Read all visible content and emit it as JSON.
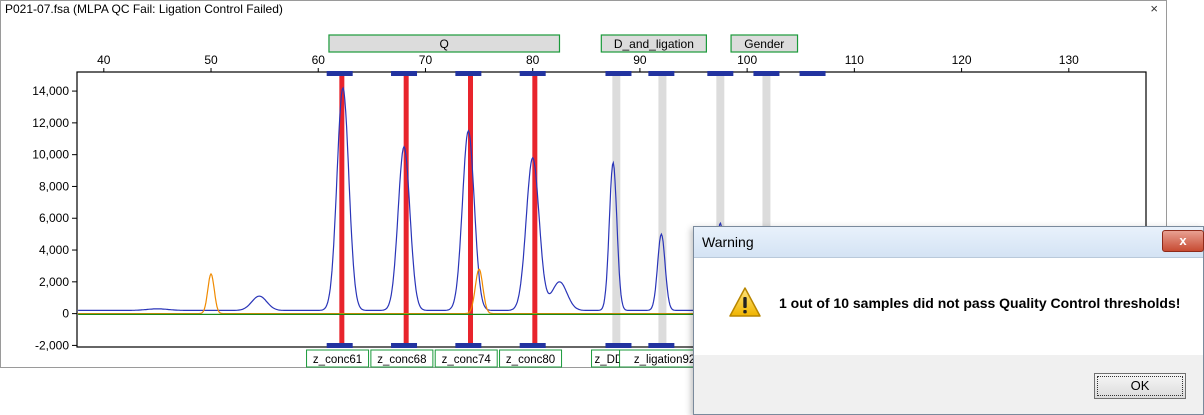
{
  "window": {
    "title": "P021-07.fsa (MLPA QC Fail: Ligation Control Failed)",
    "close_glyph": "×"
  },
  "chart_data": {
    "type": "line",
    "x_ticks": [
      40,
      50,
      60,
      70,
      80,
      90,
      100,
      110,
      120,
      130
    ],
    "y_ticks": [
      {
        "value": 14000,
        "label": "14,000"
      },
      {
        "value": 12000,
        "label": "12,000"
      },
      {
        "value": 10000,
        "label": "10,000"
      },
      {
        "value": 8000,
        "label": "8,000"
      },
      {
        "value": 6000,
        "label": "6,000"
      },
      {
        "value": 4000,
        "label": "4,000"
      },
      {
        "value": 2000,
        "label": "2,000"
      },
      {
        "value": 0,
        "label": "0"
      },
      {
        "value": -2000,
        "label": "-2,000"
      }
    ],
    "xlim": [
      37.5,
      137.2
    ],
    "ylim": [
      -2100,
      15200
    ],
    "groups": [
      {
        "label": "Q",
        "start": 61.0,
        "end": 82.5
      },
      {
        "label": "D_and_ligation",
        "start": 86.4,
        "end": 96.2
      },
      {
        "label": "Gender",
        "start": 98.5,
        "end": 104.7
      }
    ],
    "probe_markers": [
      62,
      68,
      74,
      80,
      88,
      92,
      97.5,
      101.8,
      106.1
    ],
    "red_lines": [
      62.2,
      68.2,
      74.2,
      80.2
    ],
    "gray_lines": [
      87.8,
      92.1,
      97.5,
      101.8
    ],
    "probe_labels": [
      {
        "label": "z_conc61",
        "x": 61.8
      },
      {
        "label": "z_conc68",
        "x": 67.8
      },
      {
        "label": "z_conc74",
        "x": 73.8
      },
      {
        "label": "z_conc80",
        "x": 79.8
      },
      {
        "label": "z_DD8",
        "x": 87.4
      },
      {
        "label": "z_ligation92",
        "x": 92.3
      }
    ],
    "series": [
      {
        "color": "#2a35b8",
        "baseline": 200,
        "peaks": [
          {
            "x": 45,
            "h": 100,
            "w": 1.0
          },
          {
            "x": 54.5,
            "h": 900,
            "w": 0.7
          },
          {
            "x": 62.3,
            "h": 14000,
            "w": 0.55
          },
          {
            "x": 68.0,
            "h": 10300,
            "w": 0.55
          },
          {
            "x": 74.0,
            "h": 11300,
            "w": 0.55
          },
          {
            "x": 80.0,
            "h": 9600,
            "w": 0.6
          },
          {
            "x": 82.5,
            "h": 1800,
            "w": 0.7
          },
          {
            "x": 87.5,
            "h": 9300,
            "w": 0.35
          },
          {
            "x": 92.0,
            "h": 4800,
            "w": 0.35
          },
          {
            "x": 97.5,
            "h": 5500,
            "w": 0.35
          }
        ]
      },
      {
        "color": "#f08a00",
        "baseline": 0,
        "peaks": [
          {
            "x": 50.0,
            "h": 2500,
            "w": 0.3
          },
          {
            "x": 75.0,
            "h": 2800,
            "w": 0.35
          }
        ]
      },
      {
        "color": "#1a8a1a",
        "baseline": -50,
        "peaks": []
      }
    ]
  },
  "dialog": {
    "title": "Warning",
    "close_glyph": "x",
    "message": "1 out of 10 samples did not pass Quality Control thresholds!",
    "ok_label": "OK"
  }
}
